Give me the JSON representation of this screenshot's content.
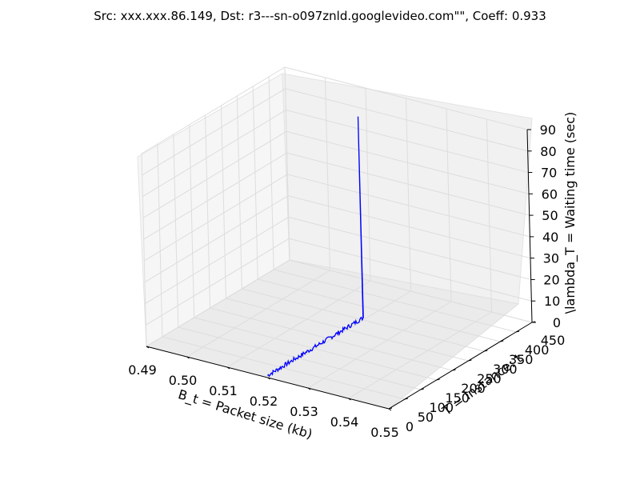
{
  "chart_data": {
    "type": "line",
    "title": "Src: xxx.xxx.86.149, Dst: r3---sn-o097znld.googlevideo.com\"\", Coeff: 0.933",
    "xlabel": "B_t = Packet size (kb)",
    "ylabel": "T = Instance: t",
    "zlabel": "\\lambda_T = Waiting time (sec)",
    "x_ticks": [
      "0.49",
      "0.50",
      "0.51",
      "0.52",
      "0.53",
      "0.54",
      "0.55"
    ],
    "y_ticks": [
      "0",
      "50",
      "100",
      "150",
      "200",
      "250",
      "300",
      "350",
      "400",
      "450"
    ],
    "z_ticks": [
      "0",
      "10",
      "20",
      "30",
      "40",
      "50",
      "60",
      "70",
      "80",
      "90"
    ],
    "xlim": [
      0.49,
      0.55
    ],
    "ylim": [
      0,
      450
    ],
    "zlim": [
      0,
      90
    ],
    "grid": true,
    "line_color": "#0000ff",
    "series": [
      {
        "x_value": 0.52,
        "segments": [
          {
            "t_start": 0,
            "t_end": 300,
            "waiting_time_approx": [
              0,
              2
            ]
          },
          {
            "t": 300,
            "waiting_time_peak": 95
          }
        ]
      }
    ]
  }
}
